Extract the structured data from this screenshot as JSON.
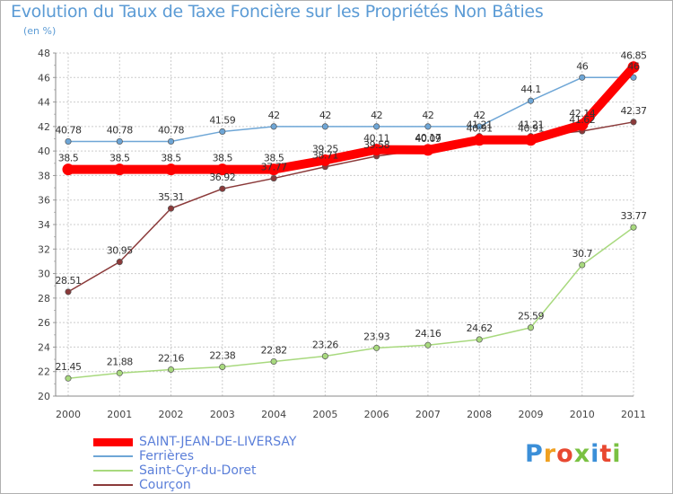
{
  "title": "Evolution du Taux de Taxe Foncière sur les Propriétés Non Bâties",
  "unit": "(en %)",
  "colors": {
    "title": "#5b9bd5",
    "grid": "#cccccc",
    "legend_text": "#5b7fd9"
  },
  "logo": {
    "letters": [
      "P",
      "r",
      "o",
      "x",
      "i",
      "t",
      "i"
    ],
    "colors": [
      "#3b8fd8",
      "#f0a020",
      "#e84830",
      "#7ac142",
      "#3b8fd8",
      "#e84830",
      "#7ac142"
    ]
  },
  "chart_data": {
    "type": "line",
    "x": [
      "2000",
      "2001",
      "2002",
      "2003",
      "2004",
      "2005",
      "2006",
      "2007",
      "2008",
      "2009",
      "2010",
      "2011"
    ],
    "ylim": [
      20,
      48
    ],
    "yticks": [
      "20",
      "22",
      "24",
      "26",
      "28",
      "30",
      "32",
      "34",
      "36",
      "38",
      "40",
      "42",
      "44",
      "46",
      "48"
    ],
    "grid": true,
    "legend_position": "bottom-left",
    "series": [
      {
        "name": "Ferrières",
        "color": "#6ea6d6",
        "values": [
          40.78,
          40.78,
          40.78,
          41.59,
          42,
          42,
          42,
          42,
          42,
          44.1,
          46,
          46
        ],
        "labels": [
          "40.78",
          "40.78",
          "40.78",
          "41.59",
          "42",
          "42",
          "42",
          "42",
          "42",
          "44.1",
          "46",
          "46"
        ]
      },
      {
        "name": "Saint-Cyr-du-Doret",
        "color": "#a8d97e",
        "values": [
          21.45,
          21.88,
          22.16,
          22.38,
          22.82,
          23.26,
          23.93,
          24.16,
          24.62,
          25.59,
          30.7,
          33.77
        ],
        "labels": [
          "21.45",
          "21.88",
          "22.16",
          "22.38",
          "22.82",
          "23.26",
          "23.93",
          "24.16",
          "24.62",
          "25.59",
          "30.7",
          "33.77"
        ]
      },
      {
        "name": "Courçon",
        "color": "#8b3a3a",
        "values": [
          28.51,
          30.95,
          35.31,
          36.92,
          37.77,
          38.71,
          39.58,
          40.17,
          41.21,
          41.21,
          41.62,
          42.37
        ],
        "labels": [
          "28.51",
          "30.95",
          "35.31",
          "36.92",
          "37.77",
          "38.71",
          "39.58",
          "40.17",
          "41.21",
          "41.21",
          "41.62",
          "42.37"
        ]
      },
      {
        "name": "SAINT-JEAN-DE-LIVERSAY",
        "color": "#ff0000",
        "values": [
          38.5,
          38.5,
          38.5,
          38.5,
          38.5,
          39.25,
          40.11,
          40.09,
          40.91,
          40.91,
          42.14,
          46.85
        ],
        "labels": [
          "38.5",
          "38.5",
          "38.5",
          "38.5",
          "38.5",
          "39.25",
          "40.11",
          "40.09",
          "40.91",
          "40.91",
          "42.14",
          "46.85"
        ]
      }
    ],
    "legend_order": [
      "SAINT-JEAN-DE-LIVERSAY",
      "Ferrières",
      "Saint-Cyr-du-Doret",
      "Courçon"
    ]
  }
}
